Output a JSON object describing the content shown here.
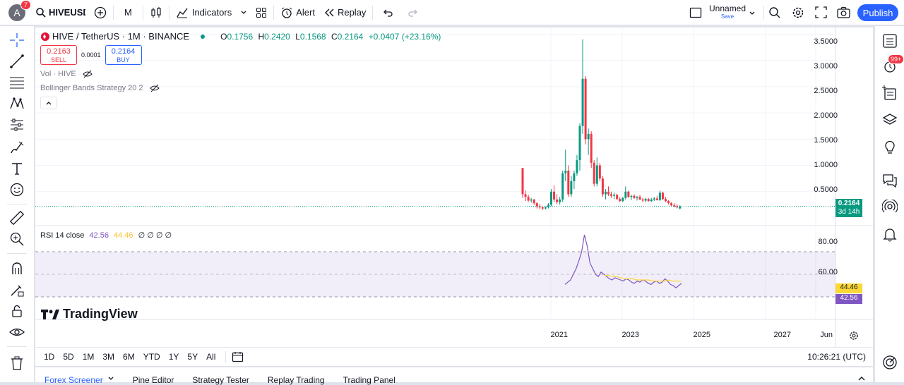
{
  "header": {
    "avatar_letter": "A",
    "avatar_badge": "7",
    "symbol": "HIVEUSDT",
    "interval": "M",
    "indicators_label": "Indicators",
    "alert_label": "Alert",
    "replay_label": "Replay",
    "layout_name": "Unnamed",
    "layout_status": "Save",
    "publish_label": "Publish"
  },
  "legend": {
    "title": "HIVE / TetherUS · 1M · BINANCE",
    "open_label": "O",
    "open": "0.1756",
    "high_label": "H",
    "high": "0.2420",
    "low_label": "L",
    "low": "0.1568",
    "close_label": "C",
    "close": "0.2164",
    "change": "+0.0407 (+23.16%)",
    "sell_price": "0.2163",
    "sell_label": "SELL",
    "spread": "0.0001",
    "buy_price": "0.2164",
    "buy_label": "BUY",
    "vol_label": "Vol · HIVE",
    "bb_label": "Bollinger Bands Strategy 20 2"
  },
  "price_axis": {
    "ticks": [
      "3.5000",
      "3.0000",
      "2.5000",
      "2.0000",
      "1.5000",
      "1.0000",
      "0.5000"
    ],
    "last_price": "0.2164",
    "countdown": "3d 14h"
  },
  "rsi": {
    "label": "RSI 14 close",
    "value": "42.56",
    "ma_value": "44.46",
    "extra": "∅ ∅ ∅ ∅",
    "ticks": [
      "80.00",
      "60.00"
    ]
  },
  "time_axis": {
    "ticks": [
      "2021",
      "2023",
      "2025",
      "2027",
      "Jun"
    ]
  },
  "timeframes": [
    "1D",
    "5D",
    "1M",
    "3M",
    "6M",
    "YTD",
    "1Y",
    "5Y",
    "All"
  ],
  "clock": "10:26:21 (UTC)",
  "watermark": "TradingView",
  "bottom_tabs": [
    "Forex Screener",
    "Pine Editor",
    "Strategy Tester",
    "Replay Trading",
    "Trading Panel"
  ],
  "notifications_badge": "99+",
  "chart_data": {
    "type": "candlestick",
    "x_unit": "month",
    "ohlc": [
      [
        0.95,
        0.95,
        0.38,
        0.45
      ],
      [
        0.45,
        0.52,
        0.32,
        0.4
      ],
      [
        0.4,
        0.44,
        0.3,
        0.33
      ],
      [
        0.33,
        0.38,
        0.29,
        0.35
      ],
      [
        0.35,
        0.36,
        0.25,
        0.28
      ],
      [
        0.28,
        0.3,
        0.18,
        0.22
      ],
      [
        0.22,
        0.26,
        0.17,
        0.2
      ],
      [
        0.2,
        0.22,
        0.15,
        0.18
      ],
      [
        0.18,
        0.22,
        0.16,
        0.2
      ],
      [
        0.2,
        0.28,
        0.18,
        0.25
      ],
      [
        0.25,
        0.55,
        0.22,
        0.5
      ],
      [
        0.5,
        0.62,
        0.3,
        0.35
      ],
      [
        0.35,
        0.45,
        0.26,
        0.3
      ],
      [
        0.3,
        0.4,
        0.25,
        0.35
      ],
      [
        0.35,
        0.9,
        0.3,
        0.85
      ],
      [
        0.85,
        1.3,
        0.7,
        0.9
      ],
      [
        0.9,
        1.0,
        0.4,
        0.45
      ],
      [
        0.45,
        0.8,
        0.4,
        0.7
      ],
      [
        0.7,
        0.9,
        0.55,
        0.85
      ],
      [
        0.85,
        1.2,
        0.8,
        1.1
      ],
      [
        1.1,
        1.8,
        0.9,
        1.75
      ],
      [
        1.75,
        3.4,
        1.6,
        2.65
      ],
      [
        2.65,
        2.7,
        1.4,
        1.5
      ],
      [
        1.5,
        1.7,
        1.2,
        1.6
      ],
      [
        1.6,
        1.65,
        0.95,
        1.05
      ],
      [
        1.05,
        1.1,
        0.6,
        0.65
      ],
      [
        0.65,
        1.15,
        0.6,
        1.0
      ],
      [
        1.0,
        1.05,
        0.7,
        0.75
      ],
      [
        0.75,
        0.8,
        0.4,
        0.45
      ],
      [
        0.45,
        0.55,
        0.35,
        0.5
      ],
      [
        0.5,
        0.6,
        0.42,
        0.45
      ],
      [
        0.45,
        0.5,
        0.38,
        0.42
      ],
      [
        0.42,
        0.48,
        0.36,
        0.44
      ],
      [
        0.44,
        0.46,
        0.34,
        0.36
      ],
      [
        0.36,
        0.4,
        0.3,
        0.32
      ],
      [
        0.32,
        0.4,
        0.3,
        0.38
      ],
      [
        0.38,
        0.6,
        0.35,
        0.5
      ],
      [
        0.5,
        0.52,
        0.38,
        0.4
      ],
      [
        0.4,
        0.44,
        0.34,
        0.42
      ],
      [
        0.42,
        0.45,
        0.36,
        0.38
      ],
      [
        0.38,
        0.42,
        0.33,
        0.4
      ],
      [
        0.4,
        0.44,
        0.34,
        0.35
      ],
      [
        0.35,
        0.38,
        0.3,
        0.33
      ],
      [
        0.33,
        0.38,
        0.3,
        0.36
      ],
      [
        0.36,
        0.38,
        0.31,
        0.32
      ],
      [
        0.32,
        0.38,
        0.3,
        0.35
      ],
      [
        0.35,
        0.4,
        0.32,
        0.37
      ],
      [
        0.37,
        0.42,
        0.33,
        0.34
      ],
      [
        0.34,
        0.52,
        0.32,
        0.48
      ],
      [
        0.48,
        0.5,
        0.34,
        0.36
      ],
      [
        0.36,
        0.4,
        0.3,
        0.32
      ],
      [
        0.32,
        0.34,
        0.26,
        0.28
      ],
      [
        0.28,
        0.3,
        0.22,
        0.24
      ],
      [
        0.24,
        0.28,
        0.2,
        0.22
      ],
      [
        0.22,
        0.26,
        0.18,
        0.2
      ],
      [
        0.18,
        0.24,
        0.16,
        0.22
      ]
    ],
    "rsi": [
      41,
      43,
      45,
      50,
      55,
      62,
      70,
      85,
      75,
      60,
      55,
      50,
      48,
      52,
      50,
      48,
      46,
      45,
      47,
      46,
      45,
      44,
      46,
      45,
      43,
      42,
      44,
      43,
      45,
      44,
      42,
      41,
      43,
      44,
      42,
      43,
      46,
      44,
      41,
      40,
      38,
      40,
      42
    ],
    "rsi_ma": [
      49,
      49,
      48,
      48,
      47,
      46,
      46,
      46,
      45,
      45,
      45,
      45,
      44,
      44,
      44,
      44,
      45,
      44,
      44,
      44
    ],
    "y_range": [
      0,
      3.6
    ],
    "rsi_bands": [
      30,
      70
    ]
  }
}
